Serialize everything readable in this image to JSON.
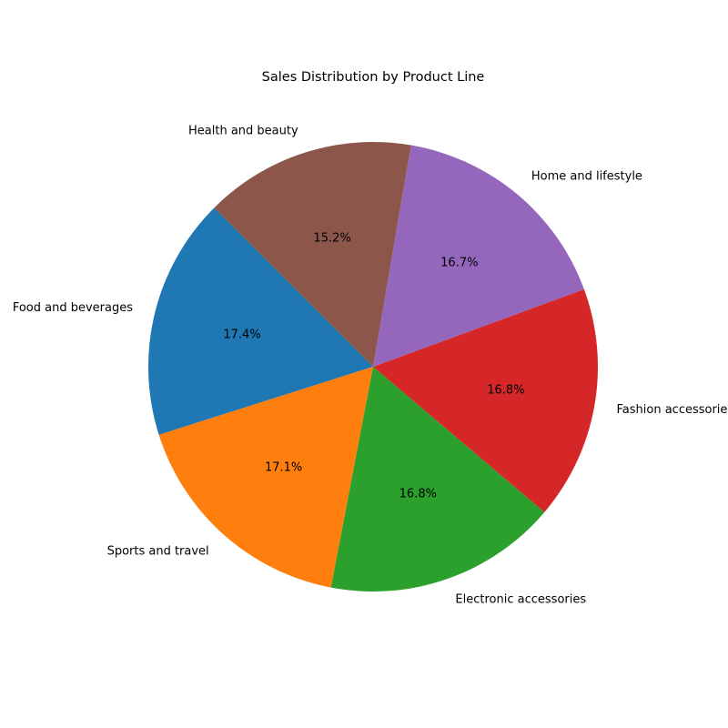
{
  "chart_data": {
    "type": "pie",
    "title": "Sales Distribution by Product Line",
    "start_angle_deg": 135,
    "direction": "counterclockwise",
    "slices": [
      {
        "label": "Food and beverages",
        "value": 17.4,
        "pct_label": "17.4%",
        "color": "#1f77b4"
      },
      {
        "label": "Sports and travel",
        "value": 17.1,
        "pct_label": "17.1%",
        "color": "#ff7f0e"
      },
      {
        "label": "Electronic accessories",
        "value": 16.8,
        "pct_label": "16.8%",
        "color": "#2ca02c"
      },
      {
        "label": "Fashion accessories",
        "value": 16.8,
        "pct_label": "16.8%",
        "color": "#d62728"
      },
      {
        "label": "Home and lifestyle",
        "value": 16.7,
        "pct_label": "16.7%",
        "color": "#9467bd"
      },
      {
        "label": "Health and beauty",
        "value": 15.2,
        "pct_label": "15.2%",
        "color": "#8c564b"
      }
    ]
  }
}
